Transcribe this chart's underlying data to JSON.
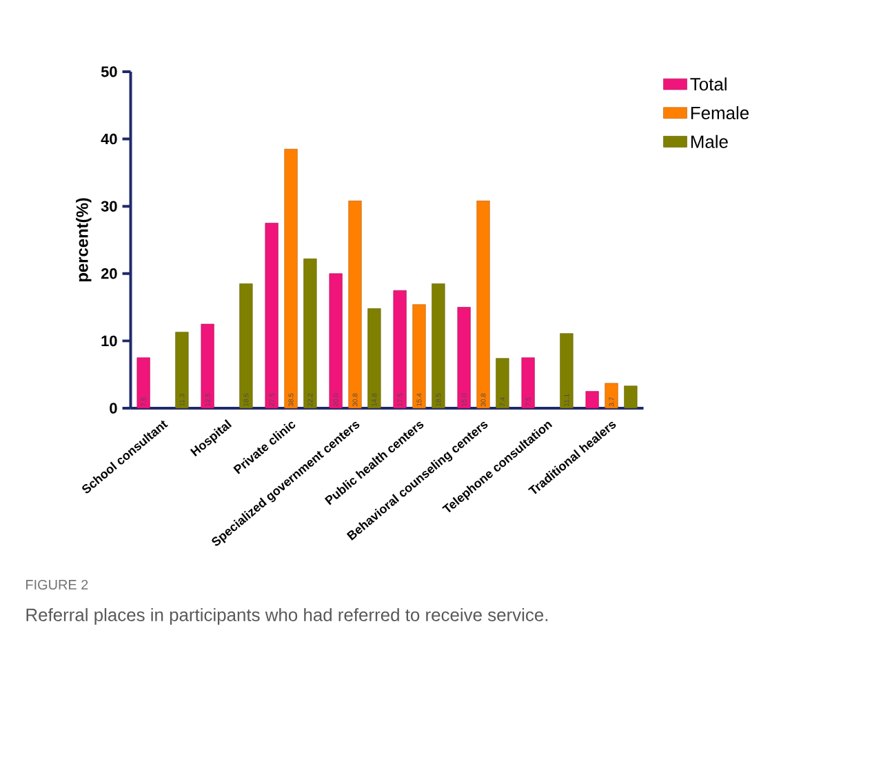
{
  "chart_data": {
    "type": "bar",
    "ylabel": "percent(%)",
    "categories": [
      "School consultant",
      "Hospital",
      "Private clinic",
      "Specialized government centers",
      "Public health centers",
      "Behavioral counseling centers",
      "Telephone consultation",
      "Traditional healers"
    ],
    "series": [
      {
        "name": "Total",
        "color": "#f0157a",
        "values": [
          7.5,
          12.5,
          27.5,
          20.0,
          17.5,
          15.0,
          7.5,
          2.5
        ],
        "value_labels": [
          "7.5",
          "12.5",
          "27.5",
          "20.0",
          "17.5",
          "15.0",
          "7.5",
          null
        ]
      },
      {
        "name": "Female",
        "color": "#ff8000",
        "values": [
          null,
          null,
          38.5,
          30.8,
          15.4,
          30.8,
          null,
          3.7
        ],
        "value_labels": [
          null,
          null,
          "38.5",
          "30.8",
          "15.4",
          "30.8",
          null,
          "3.7"
        ]
      },
      {
        "name": "Male",
        "color": "#808000",
        "values": [
          11.3,
          18.5,
          22.2,
          14.8,
          18.5,
          7.4,
          11.1,
          3.3
        ],
        "value_labels": [
          "11.3",
          "18.5",
          "22.2",
          "14.8",
          "18.5",
          "7.4",
          "11.1",
          null
        ]
      }
    ],
    "ylim": [
      0,
      50
    ],
    "yticks": [
      0,
      10,
      20,
      30,
      40,
      50
    ],
    "grid": false,
    "legend": "right",
    "annotations": [
      "FIGURE 2",
      "Referral places in participants who had referred to receive service."
    ]
  }
}
